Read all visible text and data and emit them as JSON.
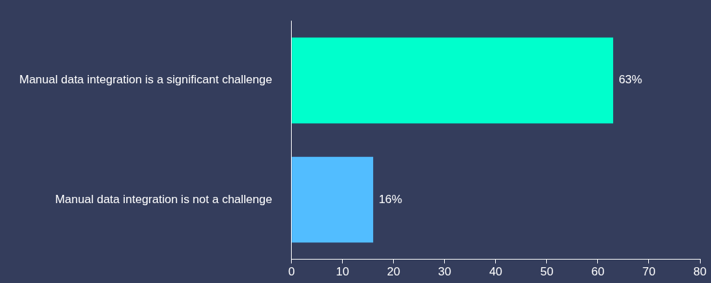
{
  "chart_data": {
    "type": "bar",
    "orientation": "horizontal",
    "categories": [
      "Manual data integration is a significant challenge",
      "Manual data integration is not a challenge"
    ],
    "values": [
      63,
      16
    ],
    "colors": [
      "#00ffcc",
      "#52bdff"
    ],
    "value_labels": [
      "63%",
      "16%"
    ],
    "xlim": [
      0,
      80
    ],
    "xticks": [
      0,
      10,
      20,
      30,
      40,
      50,
      60,
      70,
      80
    ],
    "grid": false,
    "legend": false
  }
}
